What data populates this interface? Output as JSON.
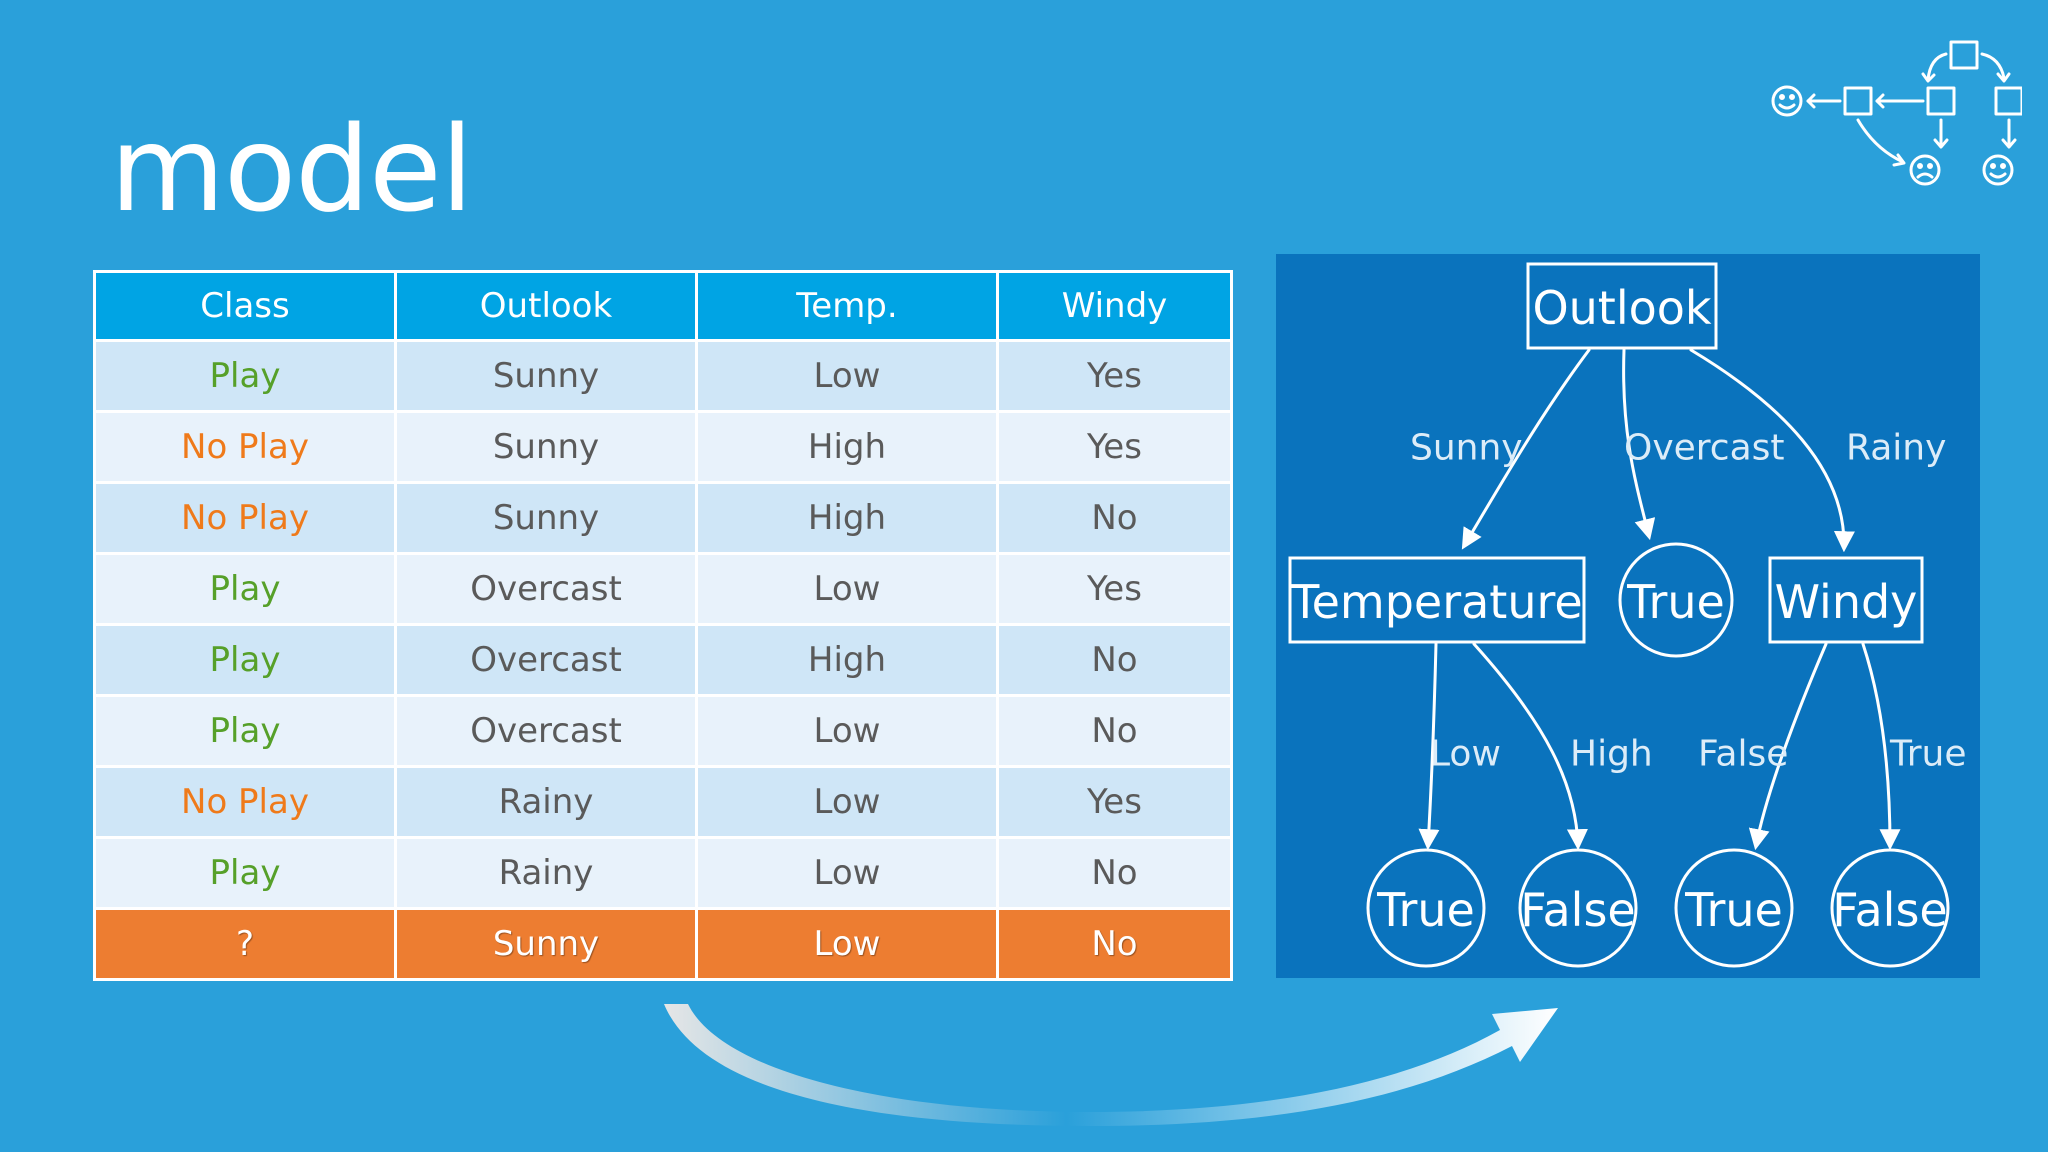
{
  "slide": {
    "title": "model"
  },
  "table": {
    "headers": [
      "Class",
      "Outlook",
      "Temp.",
      "Windy"
    ],
    "rows": [
      {
        "cls": "Play",
        "outlook": "Sunny",
        "temp": "Low",
        "windy": "Yes"
      },
      {
        "cls": "No Play",
        "outlook": "Sunny",
        "temp": "High",
        "windy": "Yes"
      },
      {
        "cls": "No Play",
        "outlook": "Sunny",
        "temp": "High",
        "windy": "No"
      },
      {
        "cls": "Play",
        "outlook": "Overcast",
        "temp": "Low",
        "windy": "Yes"
      },
      {
        "cls": "Play",
        "outlook": "Overcast",
        "temp": "High",
        "windy": "No"
      },
      {
        "cls": "Play",
        "outlook": "Overcast",
        "temp": "Low",
        "windy": "No"
      },
      {
        "cls": "No Play",
        "outlook": "Rainy",
        "temp": "Low",
        "windy": "Yes"
      },
      {
        "cls": "Play",
        "outlook": "Rainy",
        "temp": "Low",
        "windy": "No"
      }
    ],
    "query": {
      "cls": "?",
      "outlook": "Sunny",
      "temp": "Low",
      "windy": "No"
    }
  },
  "tree": {
    "root": "Outlook",
    "edges": {
      "sunny": "Sunny",
      "overcast": "Overcast",
      "rainy": "Rainy",
      "low": "Low",
      "high": "High",
      "false": "False",
      "true": "True"
    },
    "nodes": {
      "temperature": "Temperature",
      "overcast_leaf": "True",
      "windy": "Windy",
      "leaf_low": "True",
      "leaf_high": "False",
      "leaf_windy_false": "True",
      "leaf_windy_true": "False"
    }
  },
  "colors": {
    "background": "#2aa0da",
    "header": "#00a4e4",
    "play": "#56a029",
    "no_play": "#ef7a1a",
    "query_row": "#ed7d31",
    "tree_panel": "#0a73bd"
  },
  "icons": {
    "corner_logo": "decision-flow-icon",
    "bottom_arrow": "curved-arrow-icon"
  }
}
